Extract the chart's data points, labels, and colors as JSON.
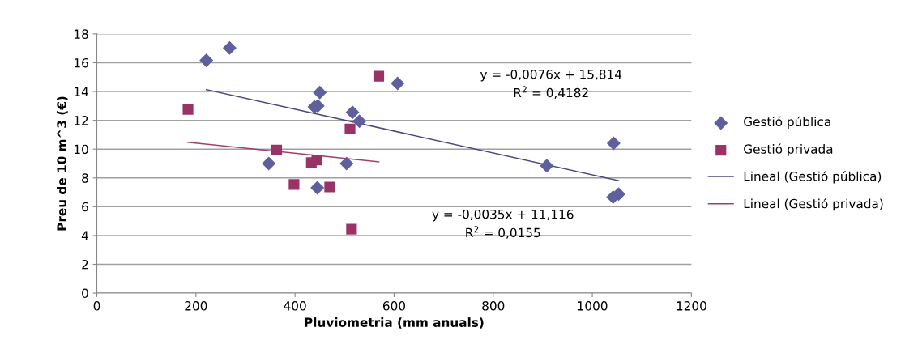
{
  "chart_data": {
    "type": "scatter",
    "xlabel": "Pluviometria (mm anuals)",
    "ylabel": "Preu de 10 m^3 (€)",
    "xlim": [
      0,
      1200
    ],
    "xticks": [
      0,
      200,
      400,
      600,
      800,
      1000,
      1200
    ],
    "ylim": [
      0,
      18
    ],
    "yticks": [
      0,
      2,
      4,
      6,
      8,
      10,
      12,
      14,
      16,
      18
    ],
    "grid": "y",
    "legend": "right",
    "annotations": [
      "y = -0,0076x + 15,814",
      "R$^{2}$ = 0,4182",
      "y = -0,0035x + 11,116",
      "R$^{2}$ = 0,0155"
    ],
    "series": [
      {
        "name": "Gestió pública",
        "marker": "diamond",
        "color": "#5f5f9e",
        "x": [
          221,
          268,
          450,
          439,
          446,
          516,
          530,
          347,
          504,
          445,
          607,
          908,
          1043,
          1042,
          1053
        ],
        "values": [
          16.16,
          17.03,
          13.93,
          12.94,
          13.0,
          12.56,
          11.94,
          9.0,
          9.0,
          7.31,
          14.57,
          8.85,
          10.41,
          6.66,
          6.88
        ]
      },
      {
        "name": "Gestió privada",
        "marker": "square",
        "color": "#993366",
        "x": [
          184,
          363,
          433,
          444,
          398,
          470,
          511,
          514,
          569
        ],
        "values": [
          12.75,
          9.94,
          9.06,
          9.24,
          7.54,
          7.37,
          11.4,
          4.44,
          15.06
        ]
      },
      {
        "name": "Lineal (Gestió pública)",
        "type": "line",
        "marker": "none",
        "line_style": "solid",
        "color": "#4a4a80",
        "x": [
          221,
          1053
        ],
        "values": [
          14.13,
          7.81
        ]
      },
      {
        "name": "Lineal (Gestió privada)",
        "type": "line",
        "marker": "none",
        "line_style": "solid",
        "color": "#a0406a",
        "x": [
          184,
          569
        ],
        "values": [
          10.47,
          9.12
        ]
      }
    ]
  }
}
